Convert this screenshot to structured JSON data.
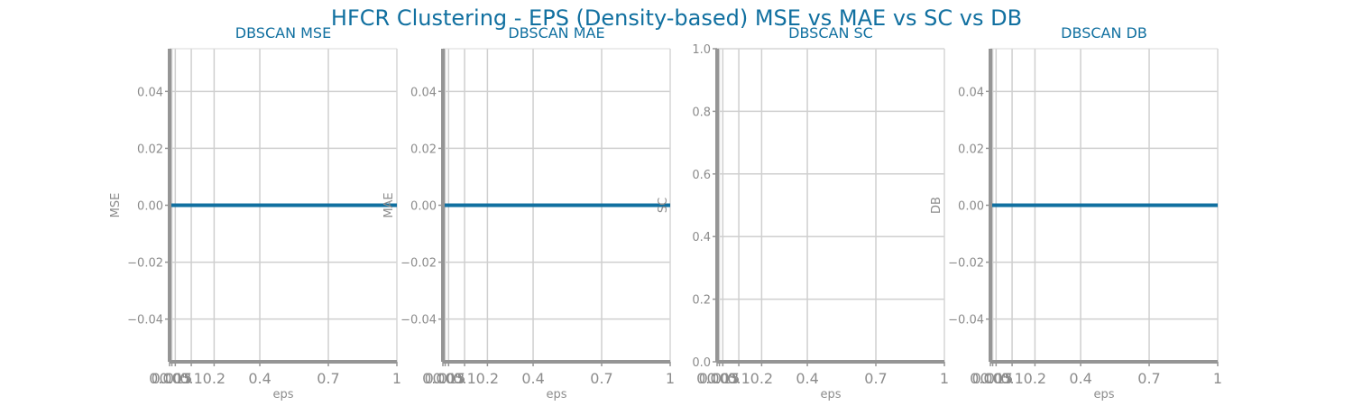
{
  "figure": {
    "suptitle": "HFCR Clustering - EPS (Density-based) MSE vs MAE vs SC vs DB"
  },
  "colors": {
    "title": "#1170a0",
    "series": "#1170a0",
    "axis": "#959595",
    "grid": "#cfcfcf",
    "tick_text": "#8c8c8c"
  },
  "chart_data": [
    {
      "type": "line",
      "title": "DBSCAN MSE",
      "xlabel": "eps",
      "ylabel": "MSE",
      "x": [
        0.005,
        0.015,
        0.03,
        0.1,
        0.2,
        0.4,
        0.7,
        1
      ],
      "xticks": [
        0.005,
        0.015,
        0.03,
        0.1,
        0.2,
        0.4,
        0.7,
        1
      ],
      "xtick_labels": [
        "0.005",
        "0.015",
        "0.03",
        "0.1",
        "0.2",
        "0.4",
        "0.7",
        "1"
      ],
      "xlim": [
        0.005,
        1
      ],
      "series": [
        {
          "values": [
            0,
            0,
            0,
            0,
            0,
            0,
            0,
            0
          ]
        }
      ],
      "ylim": [
        -0.055,
        0.055
      ],
      "yticks": [
        -0.04,
        -0.02,
        0.0,
        0.02,
        0.04
      ],
      "ytick_labels": [
        "−0.04",
        "−0.02",
        "0.00",
        "0.02",
        "0.04"
      ],
      "grid": true
    },
    {
      "type": "line",
      "title": "DBSCAN MAE",
      "xlabel": "eps",
      "ylabel": "MAE",
      "x": [
        0.005,
        0.015,
        0.03,
        0.1,
        0.2,
        0.4,
        0.7,
        1
      ],
      "xticks": [
        0.005,
        0.015,
        0.03,
        0.1,
        0.2,
        0.4,
        0.7,
        1
      ],
      "xtick_labels": [
        "0.005",
        "0.015",
        "0.03",
        "0.1",
        "0.2",
        "0.4",
        "0.7",
        "1"
      ],
      "xlim": [
        0.005,
        1
      ],
      "series": [
        {
          "values": [
            0,
            0,
            0,
            0,
            0,
            0,
            0,
            0
          ]
        }
      ],
      "ylim": [
        -0.055,
        0.055
      ],
      "yticks": [
        -0.04,
        -0.02,
        0.0,
        0.02,
        0.04
      ],
      "ytick_labels": [
        "−0.04",
        "−0.02",
        "0.00",
        "0.02",
        "0.04"
      ],
      "grid": true
    },
    {
      "type": "line",
      "title": "DBSCAN SC",
      "xlabel": "eps",
      "ylabel": "SC",
      "x": [
        0.005,
        0.015,
        0.03,
        0.1,
        0.2,
        0.4,
        0.7,
        1
      ],
      "xticks": [
        0.005,
        0.015,
        0.03,
        0.1,
        0.2,
        0.4,
        0.7,
        1
      ],
      "xtick_labels": [
        "0.005",
        "0.015",
        "0.03",
        "0.1",
        "0.2",
        "0.4",
        "0.7",
        "1"
      ],
      "xlim": [
        0.005,
        1
      ],
      "series": [],
      "ylim": [
        0,
        1
      ],
      "yticks": [
        0.0,
        0.2,
        0.4,
        0.6,
        0.8,
        1.0
      ],
      "ytick_labels": [
        "0.0",
        "0.2",
        "0.4",
        "0.6",
        "0.8",
        "1.0"
      ],
      "grid": true
    },
    {
      "type": "line",
      "title": "DBSCAN DB",
      "xlabel": "eps",
      "ylabel": "DB",
      "x": [
        0.005,
        0.015,
        0.03,
        0.1,
        0.2,
        0.4,
        0.7,
        1
      ],
      "xticks": [
        0.005,
        0.015,
        0.03,
        0.1,
        0.2,
        0.4,
        0.7,
        1
      ],
      "xtick_labels": [
        "0.005",
        "0.015",
        "0.03",
        "0.1",
        "0.2",
        "0.4",
        "0.7",
        "1"
      ],
      "xlim": [
        0.005,
        1
      ],
      "series": [
        {
          "values": [
            0,
            0,
            0,
            0,
            0,
            0,
            0,
            0
          ]
        }
      ],
      "ylim": [
        -0.055,
        0.055
      ],
      "yticks": [
        -0.04,
        -0.02,
        0.0,
        0.02,
        0.04
      ],
      "ytick_labels": [
        "−0.04",
        "−0.02",
        "0.00",
        "0.02",
        "0.04"
      ],
      "grid": true
    }
  ]
}
